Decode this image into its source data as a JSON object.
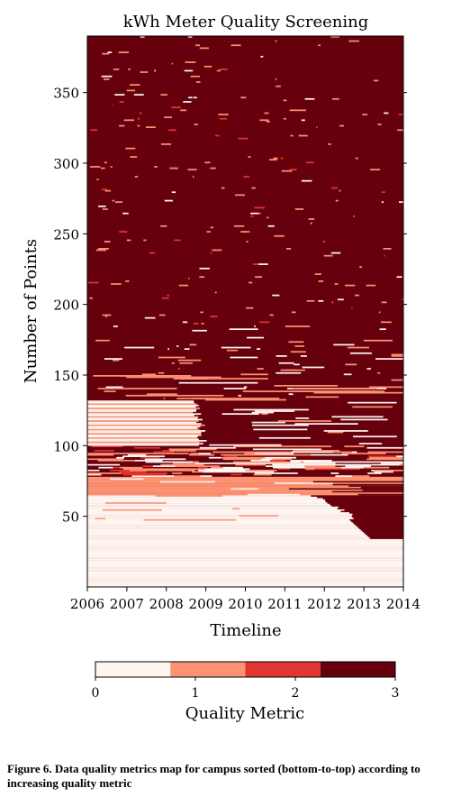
{
  "chart_data": {
    "type": "heatmap",
    "title": "kWh Meter Quality Screening",
    "xlabel": "Timeline",
    "ylabel": "Number of Points",
    "xlim": [
      2006,
      2014
    ],
    "ylim": [
      0,
      390
    ],
    "x_ticks": [
      "2006",
      "2007",
      "2008",
      "2009",
      "2010",
      "2011",
      "2012",
      "2013",
      "2014"
    ],
    "y_ticks": [
      "50",
      "100",
      "150",
      "200",
      "250",
      "300",
      "350"
    ],
    "colorbar": {
      "label": "Quality Metric",
      "range": [
        0,
        3
      ],
      "ticks": [
        "0",
        "1",
        "2",
        "3"
      ],
      "levels": [
        {
          "value": 0,
          "color": "#fff5f0"
        },
        {
          "value": 1,
          "color": "#fc9272"
        },
        {
          "value": 2,
          "color": "#e03530"
        },
        {
          "value": 3,
          "color": "#67000d"
        }
      ]
    },
    "rows_sorted": "bottom-to-top by increasing quality metric",
    "bands": [
      {
        "rows": [
          0,
          34
        ],
        "metric": 0,
        "note": "near-zero metric across whole timeline"
      },
      {
        "rows": [
          34,
          48
        ],
        "metric_before_2012_5": 0,
        "metric_after_2012_5": 3
      },
      {
        "rows": [
          48,
          65
        ],
        "metric_before_2011_8": 0,
        "metric_after_2011_8": 3
      },
      {
        "rows": [
          65,
          78
        ],
        "metric": 1,
        "note": "mostly metric 1 with some 3 after 2011"
      },
      {
        "rows": [
          78,
          100
        ],
        "metric": 3,
        "note": "mixed metric 0/1/3 streaks"
      },
      {
        "rows": [
          100,
          132
        ],
        "metric_before_2008_7": 0,
        "metric_after_2008_7": 3
      },
      {
        "rows": [
          132,
          185
        ],
        "metric": 3,
        "note": "dominant metric 3 with scattered 1/0 streaks"
      },
      {
        "rows": [
          185,
          390
        ],
        "metric": 3,
        "note": "almost entirely metric 3"
      }
    ]
  },
  "caption": "Figure 6.  Data quality metrics map for campus sorted (bottom-to-top) according to increasing quality metric"
}
